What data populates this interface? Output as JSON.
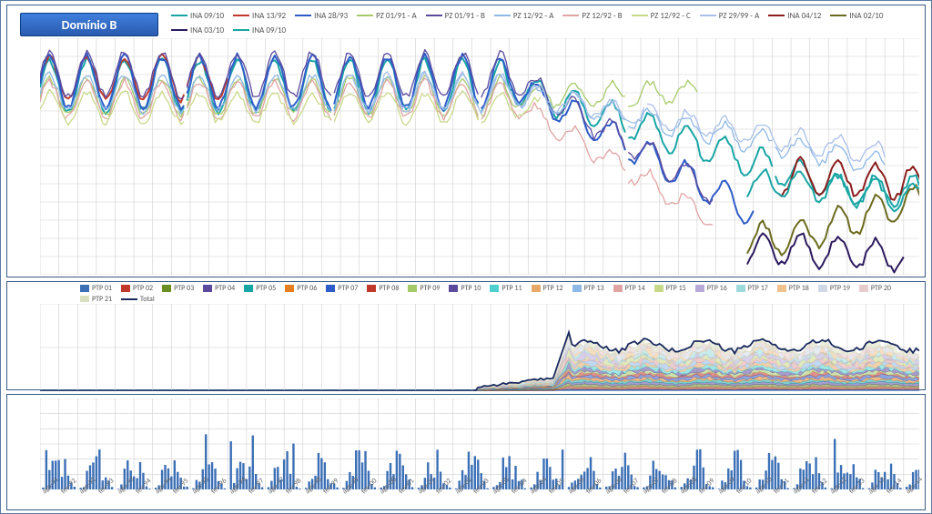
{
  "badge": "Domínio B",
  "background_color": "#ffffff",
  "border_color": "#3a5b86",
  "grid_color": "#cfcfcf",
  "axis_font_size": 9,
  "xaxis": {
    "start": "ago-91",
    "end": "ago-14",
    "labels": [
      "ago-91",
      "fev-92",
      "ago-92",
      "fev-93",
      "ago-93",
      "fev-94",
      "ago-94",
      "fev-95",
      "ago-95",
      "fev-96",
      "ago-96",
      "fev-97",
      "ago-97",
      "fev-98",
      "ago-98",
      "fev-99",
      "ago-99",
      "fev-00",
      "ago-00",
      "fev-01",
      "ago-01",
      "fev-02",
      "ago-02",
      "fev-03",
      "ago-03",
      "fev-04",
      "ago-04",
      "fev-05",
      "ago-05",
      "fev-06",
      "ago-06",
      "fev-07",
      "ago-07",
      "fev-08",
      "ago-08",
      "fev-09",
      "ago-09",
      "fev-10",
      "ago-10",
      "fev-11",
      "ago-11",
      "fev-12",
      "ago-12",
      "fev-13",
      "ago-13",
      "fev-14",
      "ago-14"
    ],
    "n_months": 282
  },
  "panel1": {
    "type": "line",
    "ylim": [
      1295,
      1360
    ],
    "ytick_step": 5,
    "series": [
      {
        "label": "INA 09/10",
        "color": "#1aa5a5"
      },
      {
        "label": "INA 13/92",
        "color": "#c0392b"
      },
      {
        "label": "INA 28/93",
        "color": "#2e5cc9"
      },
      {
        "label": "PZ 01/91 - A",
        "color": "#a6c96a"
      },
      {
        "label": "PZ 01/91 - B",
        "color": "#5b4a9e"
      },
      {
        "label": "PZ 12/92 - A",
        "color": "#8eb8e6"
      },
      {
        "label": "PZ 12/92 - B",
        "color": "#e1a4a4"
      },
      {
        "label": "PZ 12/92 - C",
        "color": "#c9d98a"
      },
      {
        "label": "PZ 29/99 - A",
        "color": "#a9c0e8"
      },
      {
        "label": "INA 04/12",
        "color": "#8c1d1d"
      },
      {
        "label": "INA 02/10",
        "color": "#6b6b1f"
      },
      {
        "label": "INA 03/10",
        "color": "#2c1a5e"
      },
      {
        "label": "INA 09/10",
        "color": "#1aa5a5"
      }
    ]
  },
  "panel2": {
    "type": "stacked-area-with-total-line",
    "ylim": [
      0,
      1000
    ],
    "ytick_step": 500,
    "series": [
      {
        "label": "PTP 01",
        "color": "#3b6fb6"
      },
      {
        "label": "PTP 02",
        "color": "#c0392b"
      },
      {
        "label": "PTP 03",
        "color": "#6b8e23"
      },
      {
        "label": "PTP 04",
        "color": "#5b4a9e"
      },
      {
        "label": "PTP 05",
        "color": "#1aa5a5"
      },
      {
        "label": "PTP 06",
        "color": "#e67e22"
      },
      {
        "label": "PTP 07",
        "color": "#2e5cc9"
      },
      {
        "label": "PTP 08",
        "color": "#c0392b"
      },
      {
        "label": "PTP 09",
        "color": "#a6c96a"
      },
      {
        "label": "PTP 10",
        "color": "#5b4a9e"
      },
      {
        "label": "PTP 11",
        "color": "#4fd0d0"
      },
      {
        "label": "PTP 12",
        "color": "#e6a96a"
      },
      {
        "label": "PTP 13",
        "color": "#8eb8e6"
      },
      {
        "label": "PTP 14",
        "color": "#e1a4a4"
      },
      {
        "label": "PTP 15",
        "color": "#c9d98a"
      },
      {
        "label": "PTP 16",
        "color": "#b8a9d9"
      },
      {
        "label": "PTP 17",
        "color": "#9fdada"
      },
      {
        "label": "PTP 18",
        "color": "#f0c28e"
      },
      {
        "label": "PTP 19",
        "color": "#cfd8e6"
      },
      {
        "label": "PTP 20",
        "color": "#e8cccc"
      },
      {
        "label": "PTP 21",
        "color": "#d9e0c0"
      },
      {
        "label": "Total",
        "color": "#1a2a5e"
      }
    ],
    "total_start_month": 140,
    "total_rise_month": 164,
    "total_peak": {
      "month": 170,
      "value": 780
    },
    "total_plateau": 520
  },
  "panel3": {
    "type": "bar",
    "ylim": [
      0,
      1200
    ],
    "ytick_step": 200,
    "bar_color": "#3b6fb6",
    "typical_range": [
      0,
      450
    ],
    "spikes": [
      760,
      660,
      620,
      800,
      580,
      540
    ]
  }
}
